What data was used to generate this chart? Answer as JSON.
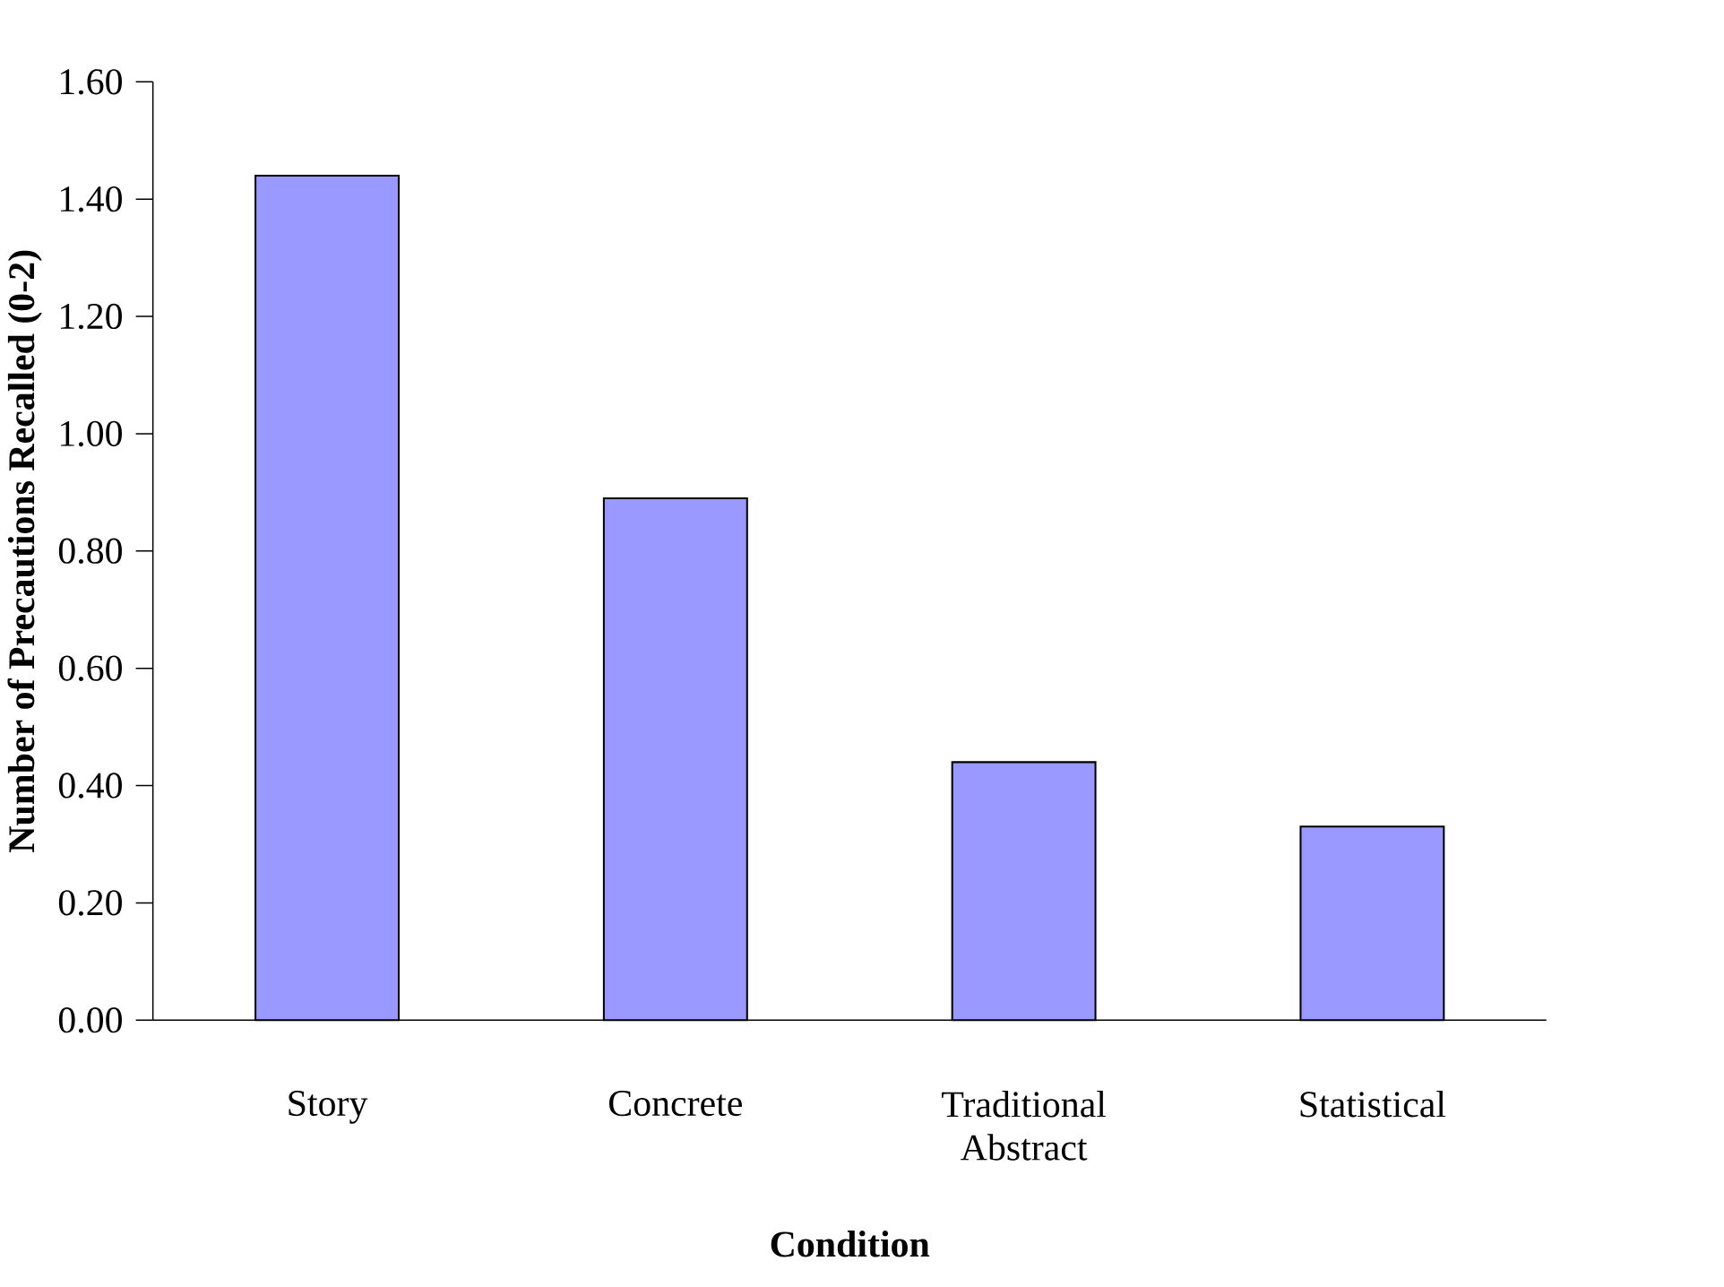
{
  "chart_data": {
    "type": "bar",
    "xlabel": "Condition",
    "ylabel": "Number of Precautions Recalled (0-2)",
    "categories": [
      "Story",
      "Concrete",
      "Traditional Abstract",
      "Statistical"
    ],
    "values": [
      1.44,
      0.89,
      0.44,
      0.33
    ],
    "color": "#9999ff",
    "ylim": [
      0,
      1.6
    ],
    "yticks": [
      {
        "value": 0,
        "label": "0.00"
      },
      {
        "value": 0.2,
        "label": "0.20"
      },
      {
        "value": 0.4,
        "label": "0.40"
      },
      {
        "value": 0.6,
        "label": "0.60"
      },
      {
        "value": 0.8,
        "label": "0.80"
      },
      {
        "value": 1.0,
        "label": "1.00"
      },
      {
        "value": 1.2,
        "label": "1.20"
      },
      {
        "value": 1.4,
        "label": "1.40"
      },
      {
        "value": 1.6,
        "label": "1.60"
      }
    ]
  }
}
